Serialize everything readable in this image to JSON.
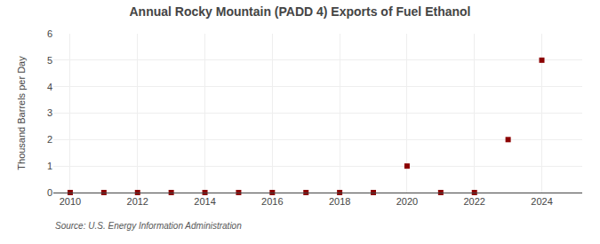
{
  "chart_data": {
    "type": "scatter",
    "title": "Annual Rocky Mountain (PADD 4) Exports of Fuel Ethanol",
    "y_label": "Thousand Barrels per Day",
    "annotations": [
      "Source: U.S. Energy Information Administration"
    ],
    "x": [
      2010,
      2011,
      2012,
      2013,
      2014,
      2015,
      2016,
      2017,
      2018,
      2019,
      2020,
      2021,
      2022,
      2023,
      2024
    ],
    "values": [
      0,
      0,
      0,
      0,
      0,
      0,
      0,
      0,
      0,
      0,
      1,
      0,
      0,
      2,
      5
    ],
    "color": "#8b0000",
    "marker": "square",
    "xlim": [
      2009.5,
      2025.2
    ],
    "xticks": [
      2010,
      2012,
      2014,
      2016,
      2018,
      2020,
      2022,
      2024
    ],
    "ylim": [
      0,
      6
    ],
    "yticks": [
      0,
      1,
      2,
      3,
      4,
      5,
      6
    ],
    "grid": true
  }
}
